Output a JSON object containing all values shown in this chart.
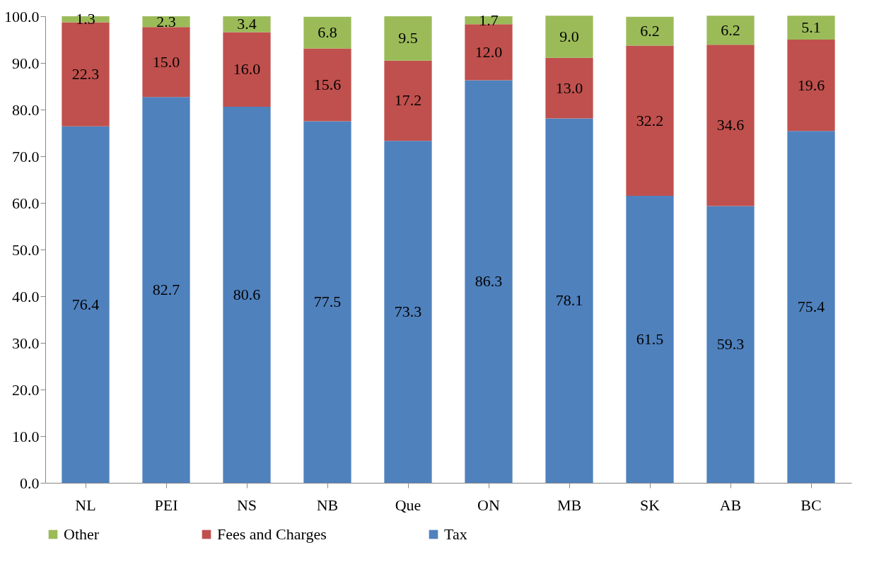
{
  "chart_data": {
    "type": "bar",
    "stacked": true,
    "categories": [
      "NL",
      "PEI",
      "NS",
      "NB",
      "Que",
      "ON",
      "MB",
      "SK",
      "AB",
      "BC"
    ],
    "series": [
      {
        "name": "Tax",
        "color": "#4f81bd",
        "values": [
          76.4,
          82.7,
          80.6,
          77.5,
          73.3,
          86.3,
          78.1,
          61.5,
          59.3,
          75.4
        ]
      },
      {
        "name": "Fees and Charges",
        "color": "#c0504d",
        "values": [
          22.3,
          15.0,
          16.0,
          15.6,
          17.2,
          12.0,
          13.0,
          32.2,
          34.6,
          19.6
        ]
      },
      {
        "name": "Other",
        "color": "#9bbb59",
        "values": [
          1.3,
          2.3,
          3.4,
          6.8,
          9.5,
          1.7,
          9.0,
          6.2,
          6.2,
          5.1
        ]
      }
    ],
    "value_labels": [
      [
        "76.4",
        "82.7",
        "80.6",
        "77.5",
        "73.3",
        "86.3",
        "78.1",
        "61.5",
        "59.3",
        "75.4"
      ],
      [
        "22.3",
        "15.0",
        "16.0",
        "15.6",
        "17.2",
        "12.0",
        "13.0",
        "32.2",
        "34.6",
        "19.6"
      ],
      [
        "1.3",
        "2.3",
        "3.4",
        "6.8",
        "9.5",
        "1.7",
        "9.0",
        "6.2",
        "6.2",
        "5.1"
      ]
    ],
    "ylim": [
      0,
      100
    ],
    "yticks": [
      {
        "value": 0,
        "label": "0.0"
      },
      {
        "value": 10,
        "label": "10.0"
      },
      {
        "value": 20,
        "label": "20.0"
      },
      {
        "value": 30,
        "label": "30.0"
      },
      {
        "value": 40,
        "label": "40.0"
      },
      {
        "value": 50,
        "label": "50.0"
      },
      {
        "value": 60,
        "label": "60.0"
      },
      {
        "value": 70,
        "label": "70.0"
      },
      {
        "value": 80,
        "label": "80.0"
      },
      {
        "value": 90,
        "label": "90.0"
      },
      {
        "value": 100,
        "label": "100.0"
      }
    ],
    "grid": false,
    "legend": "bottom"
  }
}
